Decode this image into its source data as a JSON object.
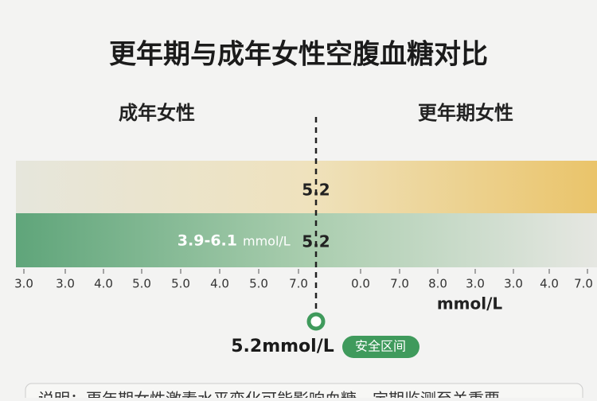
{
  "title": "更年期与成年女性空腹血糖对比",
  "groups": {
    "left": "成年女性",
    "right": "更年期女性"
  },
  "bars": [
    {
      "value_label": "5.2"
    },
    {
      "range_label": "3.9-6.1",
      "range_unit": "mmol/L",
      "value_label": "5.2"
    }
  ],
  "axis": {
    "labels": [
      "3.0",
      "3.0",
      "4.0",
      "5.0",
      "5.0",
      "4.0",
      "5.0",
      "7.0",
      "0.0",
      "7.0",
      "8.0",
      "3.0",
      "3.0",
      "4.0",
      "7.0"
    ],
    "unit": "mmol/L"
  },
  "marker": {
    "label": "5.2mmol/L",
    "badge": "安全区间"
  },
  "note": "说明：更年期女性激素水平变化可能影响血糖，定期监测至关重要"
}
